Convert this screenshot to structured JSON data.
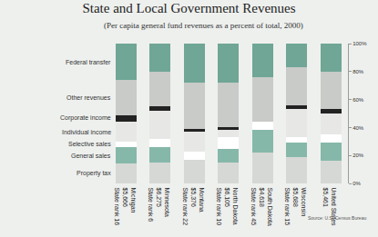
{
  "chart_data": {
    "type": "bar",
    "title": "State and Local Government Revenues",
    "subtitle": "(Per capita general fund revenues as a percent of total, 2000)",
    "annotations": [
      "Source: U.S. Census Bureau"
    ],
    "categories": [
      "Michigan\n$5,666\nState rank 16",
      "Minnesota\n$6,275\nState rank 6",
      "Montana\n$5,376\nState rank 22",
      "North Dakota\n$6,105\nState rank 10",
      "South Dakota\n$4,618\nState rank 45",
      "Wisconsin\n$5,688\nState rank 15",
      "United States\n$5,461"
    ],
    "series": [
      {
        "name": "Property tax",
        "color": "#d6d8d5",
        "values": [
          14,
          15,
          17,
          15,
          22,
          19,
          16
        ]
      },
      {
        "name": "General sales",
        "color": "#86b8aa",
        "values": [
          12,
          11,
          0,
          10,
          16,
          10,
          13
        ]
      },
      {
        "name": "Selective sales",
        "color": "#ffffff",
        "values": [
          4,
          6,
          6,
          8,
          6,
          4,
          6
        ]
      },
      {
        "name": "Individual income",
        "color": "#e7e8e6",
        "values": [
          14,
          20,
          14,
          5,
          0,
          20,
          15
        ]
      },
      {
        "name": "Corporate income",
        "color": "#222222",
        "values": [
          5,
          3,
          2,
          2,
          0,
          3,
          3
        ]
      },
      {
        "name": "Other revenues",
        "color": "#c9cbc8",
        "values": [
          25,
          25,
          33,
          32,
          32,
          27,
          27
        ]
      },
      {
        "name": "Federal transfer",
        "color": "#6fa696",
        "values": [
          26,
          20,
          28,
          28,
          24,
          17,
          20
        ]
      }
    ],
    "stacked": true,
    "ylim": [
      0,
      100
    ],
    "yticks": [
      {
        "value": 0,
        "label": "0%"
      },
      {
        "value": 20,
        "label": "20%"
      },
      {
        "value": 40,
        "label": "40%"
      },
      {
        "value": 60,
        "label": "60%"
      },
      {
        "value": 80,
        "label": "80%"
      },
      {
        "value": 100,
        "label": "100%"
      }
    ],
    "grid": false
  }
}
